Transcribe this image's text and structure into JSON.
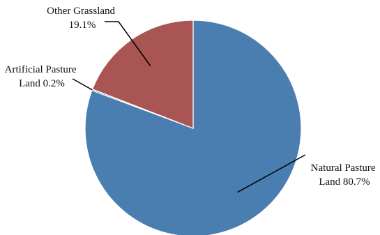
{
  "chart_data": {
    "type": "pie",
    "title": "",
    "slices": [
      {
        "lines": [
          "Natural Pasture",
          "Land 80.7%"
        ],
        "value": 80.7,
        "color": "#4A7DB0"
      },
      {
        "lines": [
          "Artificial Pasture",
          "Land 0.2%"
        ],
        "value": 0.2,
        "color": "#4A7DB0"
      },
      {
        "lines": [
          "Other Grassland",
          "19.1%"
        ],
        "value": 19.1,
        "color": "#A85553"
      }
    ],
    "start_angle": "12 o'clock",
    "direction": "clockwise",
    "legend": "none"
  }
}
